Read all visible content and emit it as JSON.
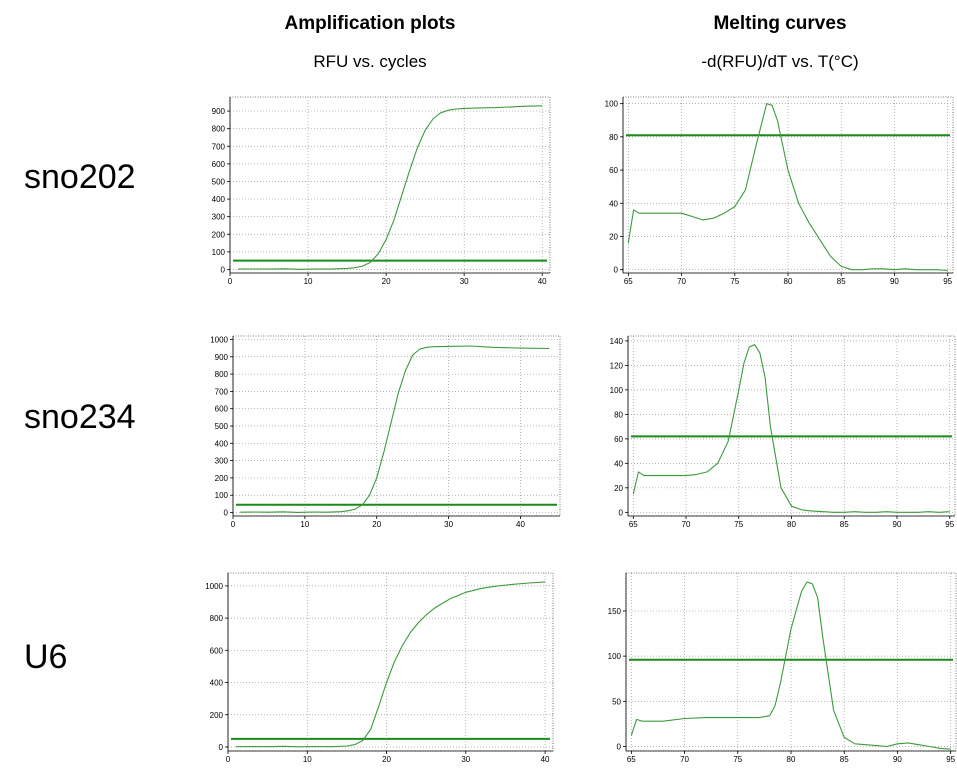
{
  "columns": [
    {
      "title": "Amplification plots",
      "subtitle": "RFU vs. cycles"
    },
    {
      "title": "Melting curves",
      "subtitle": "-d(RFU)/dT vs. T(°C)"
    }
  ],
  "rows": [
    {
      "label": "sno202"
    },
    {
      "label": "sno234"
    },
    {
      "label": "U6"
    }
  ],
  "colors": {
    "curve": "#3c9a3c",
    "threshold": "#1a8a1a",
    "grid": "#9a9a9a"
  },
  "chart_data": [
    {
      "type": "line",
      "row": "sno202",
      "panel": "Amplification plots",
      "x": [
        1,
        3,
        5,
        7,
        9,
        11,
        13,
        15,
        16,
        17,
        18,
        19,
        20,
        21,
        22,
        23,
        24,
        25,
        26,
        27,
        28,
        29,
        30,
        32,
        34,
        36,
        38,
        40
      ],
      "y": [
        2,
        3,
        2,
        4,
        1,
        3,
        2,
        6,
        10,
        20,
        40,
        90,
        170,
        280,
        420,
        560,
        690,
        790,
        855,
        890,
        905,
        912,
        915,
        918,
        920,
        924,
        928,
        930
      ],
      "threshold": 50,
      "xlim": [
        0,
        41
      ],
      "ylim": [
        -20,
        980
      ],
      "xticks": [
        0,
        10,
        20,
        30,
        40
      ],
      "yticks": [
        0,
        100,
        200,
        300,
        400,
        500,
        600,
        700,
        800,
        900
      ]
    },
    {
      "type": "line",
      "row": "sno202",
      "panel": "Melting curves",
      "x": [
        65,
        65.5,
        66,
        67,
        68,
        69,
        70,
        71,
        72,
        73,
        74,
        75,
        76,
        77,
        78,
        78.5,
        79,
        80,
        81,
        82,
        83,
        84,
        85,
        86,
        87,
        88,
        89,
        90,
        91,
        92,
        93,
        94,
        95
      ],
      "y": [
        16,
        36,
        34,
        34,
        34,
        34,
        34,
        32,
        30,
        31,
        34,
        38,
        48,
        75,
        100,
        99,
        90,
        60,
        40,
        28,
        18,
        8,
        2,
        0,
        0,
        0.5,
        0.5,
        0,
        0.5,
        0,
        0,
        0,
        -0.5
      ],
      "threshold": 81,
      "xlim": [
        64.5,
        95.5
      ],
      "ylim": [
        -2,
        104
      ],
      "xticks": [
        65,
        70,
        75,
        80,
        85,
        90,
        95
      ],
      "yticks": [
        0,
        20,
        40,
        60,
        80,
        100
      ]
    },
    {
      "type": "line",
      "row": "sno234",
      "panel": "Amplification plots",
      "x": [
        1,
        3,
        5,
        7,
        9,
        11,
        13,
        15,
        16,
        17,
        18,
        19,
        20,
        21,
        22,
        23,
        24,
        25,
        26,
        27,
        28,
        30,
        33,
        36,
        40,
        44
      ],
      "y": [
        2,
        3,
        2,
        4,
        1,
        3,
        2,
        5,
        10,
        20,
        45,
        100,
        200,
        350,
        520,
        690,
        820,
        910,
        945,
        955,
        958,
        960,
        962,
        955,
        950,
        948
      ],
      "threshold": 45,
      "xlim": [
        0,
        45.5
      ],
      "ylim": [
        -20,
        1020
      ],
      "xticks": [
        0,
        10,
        20,
        30,
        40
      ],
      "yticks": [
        0,
        100,
        200,
        300,
        400,
        500,
        600,
        700,
        800,
        900,
        1000
      ]
    },
    {
      "type": "line",
      "row": "sno234",
      "panel": "Melting curves",
      "x": [
        65,
        65.5,
        66,
        67,
        68,
        69,
        70,
        71,
        72,
        73,
        74,
        75,
        75.5,
        76,
        76.5,
        77,
        77.5,
        78,
        79,
        80,
        81,
        82,
        83,
        84,
        85,
        86,
        87,
        88,
        89,
        90,
        91,
        92,
        93,
        94,
        95
      ],
      "y": [
        15,
        33,
        30,
        30,
        30,
        30,
        30,
        31,
        33,
        40,
        58,
        100,
        122,
        135,
        137,
        130,
        110,
        70,
        20,
        5,
        2,
        1,
        0.5,
        0,
        0,
        0.5,
        0,
        0,
        0.5,
        0,
        0,
        0,
        0.5,
        0,
        0.5
      ],
      "threshold": 62,
      "xlim": [
        64.5,
        95.5
      ],
      "ylim": [
        -3,
        144
      ],
      "xticks": [
        65,
        70,
        75,
        80,
        85,
        90,
        95
      ],
      "yticks": [
        0,
        20,
        40,
        60,
        80,
        100,
        120,
        140
      ]
    },
    {
      "type": "line",
      "row": "U6",
      "panel": "Amplification plots",
      "x": [
        1,
        3,
        5,
        7,
        9,
        11,
        13,
        15,
        16,
        17,
        18,
        19,
        20,
        21,
        22,
        23,
        24,
        25,
        26,
        27,
        28,
        29,
        30,
        32,
        34,
        36,
        38,
        40
      ],
      "y": [
        2,
        3,
        2,
        4,
        1,
        3,
        2,
        6,
        15,
        40,
        110,
        250,
        400,
        530,
        630,
        710,
        770,
        820,
        860,
        890,
        920,
        940,
        960,
        985,
        1000,
        1010,
        1018,
        1025
      ],
      "threshold": 50,
      "xlim": [
        0,
        41
      ],
      "ylim": [
        -25,
        1080
      ],
      "xticks": [
        0,
        10,
        20,
        30,
        40
      ],
      "yticks": [
        0,
        200,
        400,
        600,
        800,
        1000
      ]
    },
    {
      "type": "line",
      "row": "U6",
      "panel": "Melting curves",
      "x": [
        65,
        65.5,
        66,
        68,
        70,
        72,
        74,
        76,
        77,
        78,
        78.5,
        79,
        80,
        81,
        81.5,
        82,
        82.5,
        83,
        84,
        85,
        86,
        87,
        88,
        89,
        90,
        91,
        92,
        93,
        94,
        95
      ],
      "y": [
        12,
        30,
        28,
        28,
        31,
        32,
        32,
        32,
        32,
        34,
        45,
        70,
        130,
        172,
        182,
        180,
        165,
        120,
        40,
        10,
        3,
        2,
        1,
        0,
        3,
        4,
        2,
        0,
        -2,
        -3
      ],
      "threshold": 96,
      "xlim": [
        64.5,
        95.5
      ],
      "ylim": [
        -5,
        192
      ],
      "xticks": [
        65,
        70,
        75,
        80,
        85,
        90,
        95
      ],
      "yticks": [
        0,
        50,
        100,
        150
      ]
    }
  ]
}
